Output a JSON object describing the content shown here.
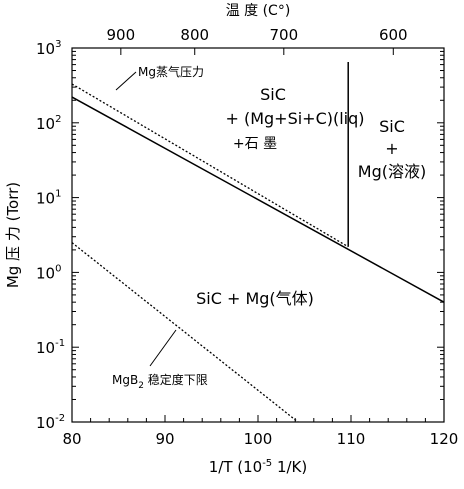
{
  "chart_data": {
    "type": "line",
    "x_label": {
      "text": "1/T (10",
      "sup": "-5",
      "after": " 1/K)"
    },
    "y_label": "Mg 压 力 (Torr)",
    "top_label": "温 度 (C°)",
    "xlim": [
      80,
      120
    ],
    "xticks": [
      80,
      90,
      100,
      110,
      120
    ],
    "ylim": [
      0.01,
      1000
    ],
    "log_y": true,
    "yticks": [
      {
        "value": 1000,
        "label": "10",
        "exponent": "3"
      },
      {
        "value": 100,
        "label": "10",
        "exponent": "2"
      },
      {
        "value": 10,
        "label": "10",
        "exponent": "1"
      },
      {
        "value": 1,
        "label": "10",
        "exponent": "0"
      },
      {
        "value": 0.1,
        "label": "10",
        "exponent": "-1"
      },
      {
        "value": 0.01,
        "label": "10",
        "exponent": "-2"
      }
    ],
    "top_ticks": [
      900,
      800,
      700,
      600
    ],
    "series": [
      {
        "x": [
          80,
          120
        ],
        "values": [
          221,
          0.4
        ],
        "style": "solid",
        "color": "#000000"
      },
      {
        "x": [
          80,
          109.7
        ],
        "values": [
          330,
          2.2
        ],
        "style": "dotted",
        "color": "#000000"
      },
      {
        "x": [
          109.7,
          109.7
        ],
        "values": [
          650,
          2.2
        ],
        "style": "solid",
        "color": "#000000"
      },
      {
        "x": [
          80,
          104.3
        ],
        "values": [
          2.5,
          0.01
        ],
        "style": "dotted",
        "color": "#000000"
      }
    ],
    "annotations": [
      "SiC",
      "+ (Mg+Si+C)(liq)",
      "+石 墨",
      "SiC",
      "+",
      "Mg(溶液)",
      "SiC + Mg(气体)",
      "Mg蒸气压力"
    ],
    "mgb2_label": {
      "text": "MgB",
      "sub": "2",
      "after": " 稳定度下限"
    }
  }
}
